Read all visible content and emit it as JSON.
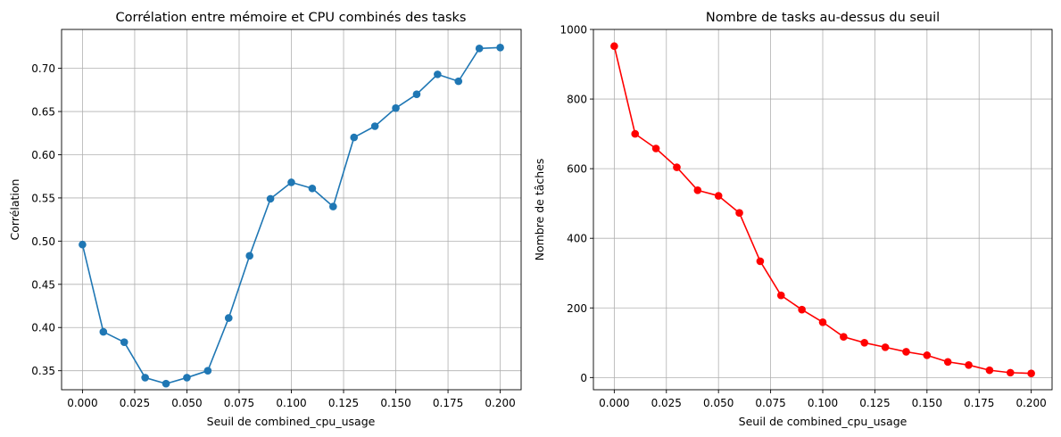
{
  "chart_data": [
    {
      "type": "line",
      "title": "Corrélation entre mémoire et CPU combinés des tasks",
      "xlabel": "Seuil de combined_cpu_usage",
      "ylabel": "Corrélation",
      "xlim": [
        -0.01,
        0.21
      ],
      "ylim": [
        0.328,
        0.745
      ],
      "xticks": [
        0.0,
        0.025,
        0.05,
        0.075,
        0.1,
        0.125,
        0.15,
        0.175,
        0.2
      ],
      "xtick_labels": [
        "0.000",
        "0.025",
        "0.050",
        "0.075",
        "0.100",
        "0.125",
        "0.150",
        "0.175",
        "0.200"
      ],
      "yticks": [
        0.35,
        0.4,
        0.45,
        0.5,
        0.55,
        0.6,
        0.65,
        0.7
      ],
      "ytick_labels": [
        "0.35",
        "0.40",
        "0.45",
        "0.50",
        "0.55",
        "0.60",
        "0.65",
        "0.70"
      ],
      "grid": true,
      "color": "#1f77b4",
      "x": [
        0.0,
        0.01,
        0.02,
        0.03,
        0.04,
        0.05,
        0.06,
        0.07,
        0.08,
        0.09,
        0.1,
        0.11,
        0.12,
        0.13,
        0.14,
        0.15,
        0.16,
        0.17,
        0.18,
        0.19,
        0.2
      ],
      "y": [
        0.496,
        0.395,
        0.383,
        0.342,
        0.335,
        0.342,
        0.35,
        0.411,
        0.483,
        0.549,
        0.568,
        0.561,
        0.54,
        0.62,
        0.633,
        0.654,
        0.67,
        0.693,
        0.685,
        0.723,
        0.724
      ]
    },
    {
      "type": "line",
      "title": "Nombre de tasks au-dessus du seuil",
      "xlabel": "Seuil de combined_cpu_usage",
      "ylabel": "Nombre de tâches",
      "xlim": [
        -0.01,
        0.21
      ],
      "ylim": [
        -35,
        1000
      ],
      "xticks": [
        0.0,
        0.025,
        0.05,
        0.075,
        0.1,
        0.125,
        0.15,
        0.175,
        0.2
      ],
      "xtick_labels": [
        "0.000",
        "0.025",
        "0.050",
        "0.075",
        "0.100",
        "0.125",
        "0.150",
        "0.175",
        "0.200"
      ],
      "yticks": [
        0,
        200,
        400,
        600,
        800,
        1000
      ],
      "ytick_labels": [
        "0",
        "200",
        "400",
        "600",
        "800",
        "1000"
      ],
      "grid": true,
      "color": "#ff0000",
      "x": [
        0.0,
        0.01,
        0.02,
        0.03,
        0.04,
        0.05,
        0.06,
        0.07,
        0.08,
        0.09,
        0.1,
        0.11,
        0.12,
        0.13,
        0.14,
        0.15,
        0.16,
        0.17,
        0.18,
        0.19,
        0.2
      ],
      "y": [
        952,
        700,
        658,
        604,
        538,
        522,
        473,
        334,
        236,
        195,
        159,
        117,
        100,
        87,
        74,
        64,
        45,
        36,
        21,
        14,
        12
      ]
    }
  ]
}
